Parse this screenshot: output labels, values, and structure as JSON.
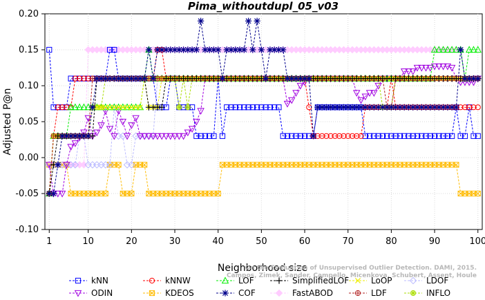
{
  "chart_data": {
    "type": "line",
    "title": "Pima_withoutdupl_05_v03",
    "xlabel": "Neighborhood size",
    "ylabel": "Adjusted P@n",
    "xlim": [
      0,
      101
    ],
    "ylim": [
      -0.1,
      0.2
    ],
    "xticks": [
      "1",
      "10",
      "20",
      "30",
      "40",
      "50",
      "60",
      "70",
      "80",
      "90",
      "100"
    ],
    "yticks": [
      "-0.10",
      "-0.05",
      "0.00",
      "0.05",
      "0.10",
      "0.15",
      "0.20"
    ],
    "legend_position": "bottom",
    "watermark": [
      "Campos, Zimek, Sander, Campello, Micenkova, Schubert, Assent, Houle",
      "On the Evaluation of Unsupervised Outlier Detection. DAMI, 2015."
    ],
    "series": [
      {
        "name": "kNN",
        "color": "#0000ff",
        "marker": "square",
        "points": [
          [
            1,
            0.15
          ],
          [
            2,
            0.07
          ],
          [
            5,
            0.07
          ],
          [
            6,
            0.11
          ],
          [
            14,
            0.11
          ],
          [
            15,
            0.15
          ],
          [
            16,
            0.15
          ],
          [
            17,
            0.11
          ],
          [
            25,
            0.11
          ],
          [
            26,
            0.07
          ],
          [
            28,
            0.07
          ],
          [
            29,
            0.11
          ],
          [
            30,
            0.11
          ],
          [
            31,
            0.07
          ],
          [
            34,
            0.07
          ],
          [
            35,
            0.03
          ],
          [
            39,
            0.03
          ],
          [
            40,
            0.11
          ],
          [
            41,
            0.03
          ],
          [
            42,
            0.07
          ],
          [
            54,
            0.07
          ],
          [
            55,
            0.03
          ],
          [
            62,
            0.03
          ],
          [
            63,
            0.07
          ],
          [
            73,
            0.07
          ],
          [
            74,
            0.03
          ],
          [
            94,
            0.03
          ],
          [
            95,
            0.07
          ],
          [
            96,
            0.03
          ],
          [
            97,
            0.03
          ],
          [
            98,
            0.07
          ],
          [
            99,
            0.03
          ],
          [
            100,
            0.03
          ]
        ]
      },
      {
        "name": "kNNW",
        "color": "#ff0000",
        "marker": "circle",
        "points": [
          [
            1,
            -0.05
          ],
          [
            2,
            0.03
          ],
          [
            3,
            0.07
          ],
          [
            6,
            0.07
          ],
          [
            7,
            0.11
          ],
          [
            25,
            0.11
          ],
          [
            26,
            0.15
          ],
          [
            27,
            0.15
          ],
          [
            28,
            0.11
          ],
          [
            60,
            0.11
          ],
          [
            61,
            0.07
          ],
          [
            62,
            0.03
          ],
          [
            67,
            0.03
          ],
          [
            72,
            0.03
          ],
          [
            73,
            0.03
          ],
          [
            74,
            0.07
          ],
          [
            79,
            0.07
          ],
          [
            80,
            0.11
          ],
          [
            81,
            0.07
          ],
          [
            100,
            0.07
          ]
        ]
      },
      {
        "name": "LOF",
        "color": "#00ee00",
        "marker": "triangle-up",
        "points": [
          [
            1,
            -0.05
          ],
          [
            2,
            0.03
          ],
          [
            5,
            0.03
          ],
          [
            6,
            0.07
          ],
          [
            11,
            0.07
          ],
          [
            12,
            0.07
          ],
          [
            22,
            0.07
          ],
          [
            23,
            0.11
          ],
          [
            24,
            0.15
          ],
          [
            25,
            0.11
          ],
          [
            89,
            0.11
          ],
          [
            90,
            0.15
          ],
          [
            96,
            0.15
          ],
          [
            97,
            0.11
          ],
          [
            98,
            0.15
          ],
          [
            100,
            0.15
          ]
        ]
      },
      {
        "name": "SimplifiedLOF",
        "color": "#000000",
        "marker": "plus",
        "points": [
          [
            1,
            -0.05
          ],
          [
            2,
            -0.01
          ],
          [
            3,
            0.03
          ],
          [
            11,
            0.03
          ],
          [
            12,
            0.11
          ],
          [
            23,
            0.11
          ],
          [
            24,
            0.07
          ],
          [
            27,
            0.07
          ],
          [
            28,
            0.11
          ],
          [
            86,
            0.11
          ],
          [
            87,
            0.11
          ],
          [
            100,
            0.11
          ]
        ]
      },
      {
        "name": "LoOP",
        "color": "#eeee00",
        "marker": "cross",
        "points": [
          [
            1,
            -0.05
          ],
          [
            2,
            0.03
          ],
          [
            10,
            0.03
          ],
          [
            11,
            0.07
          ],
          [
            22,
            0.07
          ],
          [
            23,
            0.11
          ],
          [
            24,
            0.07
          ],
          [
            26,
            0.07
          ],
          [
            27,
            0.11
          ],
          [
            100,
            0.11
          ]
        ]
      },
      {
        "name": "LDOF",
        "color": "#bbbbff",
        "marker": "diamond",
        "points": [
          [
            1,
            -0.01
          ],
          [
            3,
            -0.01
          ],
          [
            4,
            -0.01
          ],
          [
            5,
            -0.01
          ],
          [
            6,
            -0.01
          ],
          [
            7,
            -0.01
          ],
          [
            8,
            0.03
          ],
          [
            10,
            -0.01
          ],
          [
            12,
            -0.01
          ],
          [
            13,
            -0.01
          ],
          [
            15,
            -0.01
          ],
          [
            16,
            0.07
          ],
          [
            17,
            0.03
          ],
          [
            18,
            0.03
          ],
          [
            19,
            -0.01
          ],
          [
            20,
            -0.01
          ],
          [
            21,
            0.03
          ],
          [
            22,
            0.03
          ],
          [
            23,
            0.03
          ],
          [
            24,
            0.03
          ],
          [
            25,
            0.03
          ],
          [
            26,
            0.11
          ],
          [
            100,
            0.11
          ]
        ]
      },
      {
        "name": "ODIN",
        "color": "#a000e0",
        "marker": "triangle-down",
        "points": [
          [
            1,
            -0.01
          ],
          [
            2,
            -0.05
          ],
          [
            3,
            -0.05
          ],
          [
            4,
            -0.05
          ],
          [
            5,
            -0.01
          ],
          [
            6,
            0.015
          ],
          [
            7,
            0.02
          ],
          [
            8,
            0.028
          ],
          [
            9,
            0.035
          ],
          [
            10,
            0.055
          ],
          [
            11,
            0.03
          ],
          [
            12,
            0.035
          ],
          [
            13,
            0.045
          ],
          [
            14,
            0.065
          ],
          [
            15,
            0.04
          ],
          [
            16,
            0.03
          ],
          [
            17,
            0.065
          ],
          [
            18,
            0.05
          ],
          [
            19,
            0.03
          ],
          [
            20,
            0.045
          ],
          [
            21,
            0.055
          ],
          [
            22,
            0.03
          ],
          [
            23,
            0.03
          ],
          [
            32,
            0.03
          ],
          [
            33,
            0.035
          ],
          [
            34,
            0.04
          ],
          [
            35,
            0.05
          ],
          [
            36,
            0.065
          ],
          [
            37,
            0.11
          ],
          [
            55,
            0.11
          ],
          [
            56,
            0.075
          ],
          [
            57,
            0.08
          ],
          [
            58,
            0.09
          ],
          [
            59,
            0.1
          ],
          [
            60,
            0.105
          ],
          [
            61,
            0.11
          ],
          [
            66,
            0.11
          ],
          [
            72,
            0.09
          ],
          [
            73,
            0.08
          ],
          [
            74,
            0.085
          ],
          [
            75,
            0.09
          ],
          [
            76,
            0.09
          ],
          [
            77,
            0.1
          ],
          [
            78,
            0.11
          ],
          [
            82,
            0.11
          ],
          [
            83,
            0.12
          ],
          [
            84,
            0.12
          ],
          [
            85,
            0.12
          ],
          [
            86,
            0.125
          ],
          [
            89,
            0.125
          ],
          [
            90,
            0.127
          ],
          [
            93,
            0.127
          ],
          [
            94,
            0.125
          ],
          [
            95,
            0.11
          ],
          [
            96,
            0.105
          ],
          [
            97,
            0.105
          ],
          [
            100,
            0.11
          ]
        ]
      },
      {
        "name": "KDEOS",
        "color": "#ffbb00",
        "marker": "square-x",
        "points": [
          [
            1,
            -0.01
          ],
          [
            2,
            -0.01
          ],
          [
            3,
            -0.01
          ],
          [
            4,
            -0.01
          ],
          [
            5,
            -0.01
          ],
          [
            6,
            -0.05
          ],
          [
            13,
            -0.05
          ],
          [
            14,
            -0.05
          ],
          [
            15,
            -0.01
          ],
          [
            17,
            -0.01
          ],
          [
            18,
            -0.05
          ],
          [
            20,
            -0.05
          ],
          [
            21,
            -0.01
          ],
          [
            23,
            -0.01
          ],
          [
            24,
            -0.05
          ],
          [
            40,
            -0.05
          ],
          [
            41,
            -0.01
          ],
          [
            70,
            -0.01
          ],
          [
            71,
            -0.01
          ],
          [
            72,
            -0.01
          ],
          [
            73,
            -0.01
          ],
          [
            74,
            -0.01
          ],
          [
            95,
            -0.01
          ],
          [
            96,
            -0.05
          ],
          [
            100,
            -0.05
          ]
        ]
      },
      {
        "name": "COF",
        "color": "#00008b",
        "marker": "asterisk",
        "points": [
          [
            1,
            -0.05
          ],
          [
            2,
            -0.05
          ],
          [
            3,
            -0.01
          ],
          [
            4,
            0.03
          ],
          [
            10,
            0.03
          ],
          [
            11,
            0.07
          ],
          [
            12,
            0.11
          ],
          [
            23,
            0.11
          ],
          [
            24,
            0.15
          ],
          [
            25,
            0.11
          ],
          [
            26,
            0.15
          ],
          [
            35,
            0.15
          ],
          [
            36,
            0.19
          ],
          [
            37,
            0.15
          ],
          [
            40,
            0.15
          ],
          [
            41,
            0.11
          ],
          [
            42,
            0.15
          ],
          [
            46,
            0.15
          ],
          [
            47,
            0.19
          ],
          [
            48,
            0.15
          ],
          [
            49,
            0.19
          ],
          [
            50,
            0.15
          ],
          [
            51,
            0.11
          ],
          [
            52,
            0.15
          ],
          [
            55,
            0.15
          ],
          [
            56,
            0.11
          ],
          [
            61,
            0.11
          ],
          [
            62,
            0.03
          ],
          [
            63,
            0.07
          ],
          [
            75,
            0.07
          ],
          [
            76,
            0.07
          ],
          [
            79,
            0.07
          ],
          [
            80,
            0.07
          ],
          [
            95,
            0.07
          ],
          [
            96,
            0.15
          ],
          [
            97,
            0.11
          ],
          [
            100,
            0.11
          ]
        ]
      },
      {
        "name": "FastABOD",
        "color": "#ffccff",
        "marker": "diamond-filled",
        "points": [
          [
            1,
            -0.01
          ],
          [
            10,
            0.15
          ],
          [
            96,
            0.15
          ],
          [
            97,
            0.11
          ],
          [
            100,
            0.11
          ]
        ]
      },
      {
        "name": "LDF",
        "color": "#b22222",
        "marker": "circle-plus",
        "points": [
          [
            1,
            -0.05
          ],
          [
            2,
            0.03
          ],
          [
            10,
            0.03
          ],
          [
            11,
            0.11
          ],
          [
            78,
            0.11
          ],
          [
            79,
            0.07
          ],
          [
            80,
            0.07
          ],
          [
            81,
            0.11
          ],
          [
            100,
            0.11
          ]
        ]
      },
      {
        "name": "INFLO",
        "color": "#aadd00",
        "marker": "circle-star",
        "points": [
          [
            1,
            -0.05
          ],
          [
            2,
            0.03
          ],
          [
            10,
            0.03
          ],
          [
            11,
            0.07
          ],
          [
            13,
            0.07
          ],
          [
            14,
            0.11
          ],
          [
            30,
            0.11
          ],
          [
            31,
            0.07
          ],
          [
            32,
            0.11
          ],
          [
            33,
            0.07
          ],
          [
            34,
            0.11
          ],
          [
            77,
            0.11
          ],
          [
            78,
            0.07
          ],
          [
            80,
            0.07
          ],
          [
            81,
            0.11
          ],
          [
            100,
            0.11
          ]
        ]
      }
    ]
  }
}
